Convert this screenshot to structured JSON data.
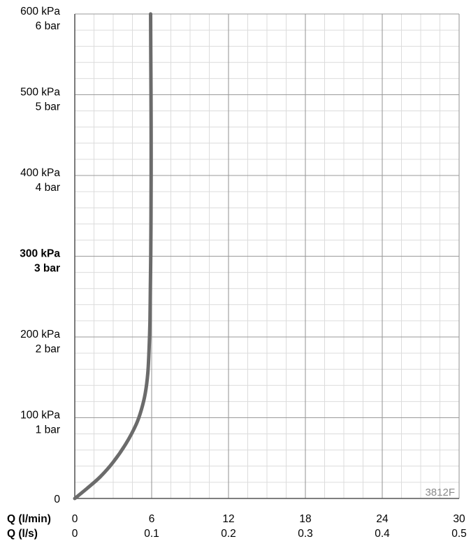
{
  "chart_data": {
    "type": "line",
    "code_label": "3812F",
    "x_axis": {
      "row1_title": "Q (l/min)",
      "row2_title": "Q (l/s)",
      "ticks_lmin": [
        "0",
        "6",
        "12",
        "18",
        "24",
        "30"
      ],
      "ticks_ls": [
        "0",
        "0.1",
        "0.2",
        "0.3",
        "0.4",
        "0.5"
      ],
      "xlim": [
        0,
        30
      ],
      "unit": "l/min"
    },
    "y_axis": {
      "ylim": [
        0,
        600
      ],
      "unit": "kPa",
      "ticks": [
        {
          "value": 0,
          "kpa": "0",
          "bar": ""
        },
        {
          "value": 100,
          "kpa": "100 kPa",
          "bar": "1 bar"
        },
        {
          "value": 200,
          "kpa": "200 kPa",
          "bar": "2 bar"
        },
        {
          "value": 300,
          "kpa": "300 kPa",
          "bar": "3 bar",
          "bold": true
        },
        {
          "value": 400,
          "kpa": "400 kPa",
          "bar": "4 bar"
        },
        {
          "value": 500,
          "kpa": "500 kPa",
          "bar": "5 bar"
        },
        {
          "value": 600,
          "kpa": "600 kPa",
          "bar": "6 bar"
        }
      ]
    },
    "grid": true,
    "series": [
      {
        "color": "#6b6b6b",
        "points": [
          [
            0.0,
            0
          ],
          [
            1.0,
            13
          ],
          [
            2.0,
            27
          ],
          [
            3.0,
            45
          ],
          [
            4.0,
            68
          ],
          [
            4.8,
            92
          ],
          [
            5.2,
            110
          ],
          [
            5.5,
            130
          ],
          [
            5.7,
            155
          ],
          [
            5.8,
            185
          ],
          [
            5.87,
            220
          ],
          [
            5.9,
            260
          ],
          [
            5.93,
            300
          ],
          [
            5.95,
            350
          ],
          [
            5.96,
            400
          ],
          [
            5.96,
            450
          ],
          [
            5.95,
            500
          ],
          [
            5.93,
            560
          ],
          [
            5.92,
            600
          ]
        ]
      }
    ]
  }
}
